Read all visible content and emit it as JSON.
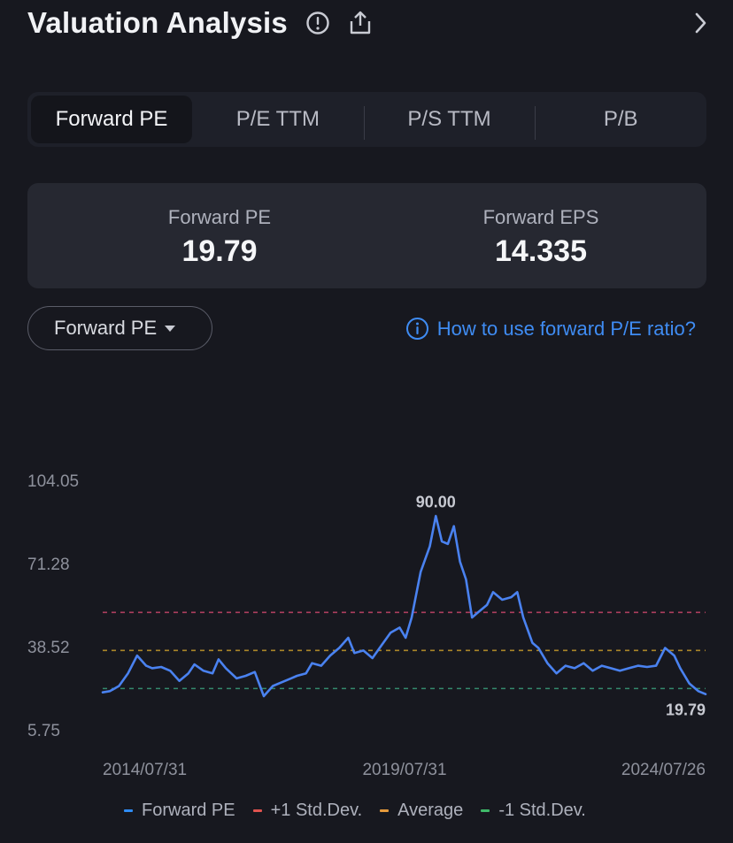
{
  "header": {
    "title": "Valuation Analysis",
    "info_icon": "info-circle-icon",
    "share_icon": "share-icon",
    "chevron_icon": "chevron-right-icon"
  },
  "tabs": [
    {
      "label": "Forward PE",
      "active": true
    },
    {
      "label": "P/E TTM",
      "active": false
    },
    {
      "label": "P/S TTM",
      "active": false
    },
    {
      "label": "P/B",
      "active": false
    }
  ],
  "stats": {
    "left": {
      "label": "Forward PE",
      "value": "19.79"
    },
    "right": {
      "label": "Forward EPS",
      "value": "14.335"
    }
  },
  "selector": {
    "label": "Forward PE"
  },
  "help": {
    "label": "How to use forward P/E ratio?"
  },
  "legend": [
    {
      "label": "Forward PE",
      "color": "#2f8cf5"
    },
    {
      "label": "+1 Std.Dev.",
      "color": "#e0534f"
    },
    {
      "label": "Average",
      "color": "#e59a3c"
    },
    {
      "label": "-1 Std.Dev.",
      "color": "#3fb969"
    }
  ],
  "chart_data": {
    "type": "line",
    "y_ticks": [
      "104.05",
      "71.28",
      "38.52",
      "5.75"
    ],
    "x_ticks": [
      "2014/07/31",
      "2019/07/31",
      "2024/07/26"
    ],
    "ylim": [
      5.75,
      104.05
    ],
    "xlim": [
      2014.58,
      2024.57
    ],
    "peak_label": "90.00",
    "last_label": "19.79",
    "series": [
      {
        "name": "Forward PE",
        "color": "#4a82f0",
        "x": [
          2014.58,
          2014.7,
          2014.85,
          2015.0,
          2015.15,
          2015.3,
          2015.4,
          2015.55,
          2015.7,
          2015.85,
          2016.0,
          2016.1,
          2016.25,
          2016.4,
          2016.5,
          2016.62,
          2016.8,
          2016.95,
          2017.1,
          2017.25,
          2017.4,
          2017.55,
          2017.7,
          2017.8,
          2017.95,
          2018.05,
          2018.2,
          2018.35,
          2018.5,
          2018.65,
          2018.75,
          2018.9,
          2019.05,
          2019.2,
          2019.35,
          2019.5,
          2019.6,
          2019.7,
          2019.85,
          2020.0,
          2020.1,
          2020.2,
          2020.3,
          2020.4,
          2020.5,
          2020.6,
          2020.7,
          2020.8,
          2020.95,
          2021.05,
          2021.2,
          2021.35,
          2021.45,
          2021.55,
          2021.7,
          2021.8,
          2021.95,
          2022.1,
          2022.25,
          2022.4,
          2022.55,
          2022.7,
          2022.85,
          2023.0,
          2023.15,
          2023.3,
          2023.45,
          2023.6,
          2023.75,
          2023.9,
          2024.05,
          2024.15,
          2024.3,
          2024.45,
          2024.57
        ],
        "y": [
          20.5,
          21.0,
          23.0,
          28.0,
          35.0,
          31.0,
          30.0,
          30.5,
          29.0,
          25.0,
          28.0,
          31.5,
          29.0,
          28.0,
          33.5,
          30.0,
          26.0,
          27.0,
          28.5,
          19.0,
          23.0,
          24.5,
          26.0,
          27.0,
          28.0,
          32.0,
          31.0,
          35.0,
          38.0,
          42.0,
          36.0,
          37.0,
          34.0,
          39.0,
          44.0,
          46.0,
          42.0,
          50.0,
          68.0,
          78.0,
          90.0,
          80.0,
          79.0,
          86.0,
          72.0,
          65.0,
          50.0,
          52.0,
          55.0,
          60.0,
          57.0,
          58.0,
          60.0,
          50.0,
          40.0,
          38.0,
          32.0,
          28.0,
          31.0,
          30.0,
          32.0,
          29.0,
          31.0,
          30.0,
          29.0,
          30.0,
          31.0,
          30.5,
          31.0,
          38.0,
          35.0,
          30.0,
          24.0,
          21.0,
          19.79
        ]
      },
      {
        "name": "+1 Std.Dev.",
        "color": "#c8456a",
        "value": 52.0,
        "dashed": true
      },
      {
        "name": "Average",
        "color": "#c59a2a",
        "value": 37.0,
        "dashed": true
      },
      {
        "name": "-1 Std.Dev.",
        "color": "#3a9f7b",
        "value": 22.0,
        "dashed": true
      }
    ]
  }
}
